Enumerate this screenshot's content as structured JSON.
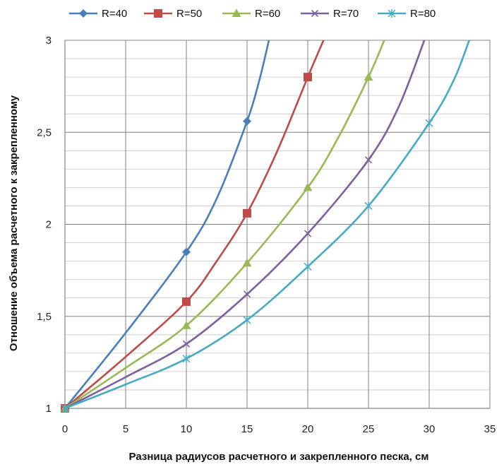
{
  "chart_data": {
    "type": "line",
    "title": "",
    "xlabel": "Разница радиусов расчетного и закрепленного песка, см",
    "ylabel": "Отношение объема расчетного к закрепленному",
    "xlim": [
      0,
      35
    ],
    "ylim": [
      1,
      3
    ],
    "xticks": [
      "0",
      "5",
      "10",
      "15",
      "20",
      "25",
      "30",
      "35"
    ],
    "yticks": [
      "1",
      "1,5",
      "2",
      "2,5",
      "3"
    ],
    "grid": true,
    "legend_position": "top",
    "series": [
      {
        "name": "R=40",
        "color": "#4a7ebb",
        "marker": "diamond",
        "curve": [
          [
            0,
            1
          ],
          [
            5,
            1.41
          ],
          [
            10,
            1.85
          ],
          [
            12.5,
            2.14
          ],
          [
            15,
            2.56
          ],
          [
            16,
            2.78
          ],
          [
            16.8,
            3.0
          ]
        ],
        "marker_points": [
          [
            0,
            1
          ],
          [
            10,
            1.85
          ],
          [
            15,
            2.56
          ]
        ]
      },
      {
        "name": "R=50",
        "color": "#be4b48",
        "marker": "square",
        "curve": [
          [
            0,
            1
          ],
          [
            5,
            1.28
          ],
          [
            10,
            1.58
          ],
          [
            12.5,
            1.8
          ],
          [
            15,
            2.06
          ],
          [
            17.5,
            2.4
          ],
          [
            20,
            2.8
          ],
          [
            21.3,
            3.0
          ]
        ],
        "marker_points": [
          [
            0,
            1
          ],
          [
            10,
            1.58
          ],
          [
            15,
            2.06
          ],
          [
            20,
            2.8
          ]
        ]
      },
      {
        "name": "R=60",
        "color": "#98b954",
        "marker": "triangle",
        "curve": [
          [
            0,
            1
          ],
          [
            5,
            1.22
          ],
          [
            10,
            1.45
          ],
          [
            15,
            1.79
          ],
          [
            20,
            2.2
          ],
          [
            22.5,
            2.47
          ],
          [
            25,
            2.8
          ],
          [
            26.3,
            3.0
          ]
        ],
        "marker_points": [
          [
            0,
            1
          ],
          [
            10,
            1.45
          ],
          [
            15,
            1.79
          ],
          [
            20,
            2.2
          ],
          [
            25,
            2.8
          ]
        ]
      },
      {
        "name": "R=70",
        "color": "#7d60a0",
        "marker": "x",
        "curve": [
          [
            0,
            1
          ],
          [
            5,
            1.17
          ],
          [
            10,
            1.35
          ],
          [
            15,
            1.62
          ],
          [
            20,
            1.95
          ],
          [
            25,
            2.35
          ],
          [
            27.5,
            2.64
          ],
          [
            29.6,
            3.0
          ]
        ],
        "marker_points": [
          [
            0,
            1
          ],
          [
            10,
            1.35
          ],
          [
            15,
            1.62
          ],
          [
            20,
            1.95
          ],
          [
            25,
            2.35
          ]
        ]
      },
      {
        "name": "R=80",
        "color": "#46aac5",
        "marker": "star",
        "curve": [
          [
            0,
            1
          ],
          [
            5,
            1.13
          ],
          [
            10,
            1.27
          ],
          [
            15,
            1.48
          ],
          [
            20,
            1.77
          ],
          [
            25,
            2.1
          ],
          [
            30,
            2.55
          ],
          [
            32,
            2.78
          ],
          [
            33.3,
            3.0
          ]
        ],
        "marker_points": [
          [
            0,
            1
          ],
          [
            10,
            1.27
          ],
          [
            15,
            1.48
          ],
          [
            20,
            1.77
          ],
          [
            25,
            2.1
          ],
          [
            30,
            2.55
          ]
        ]
      }
    ]
  }
}
